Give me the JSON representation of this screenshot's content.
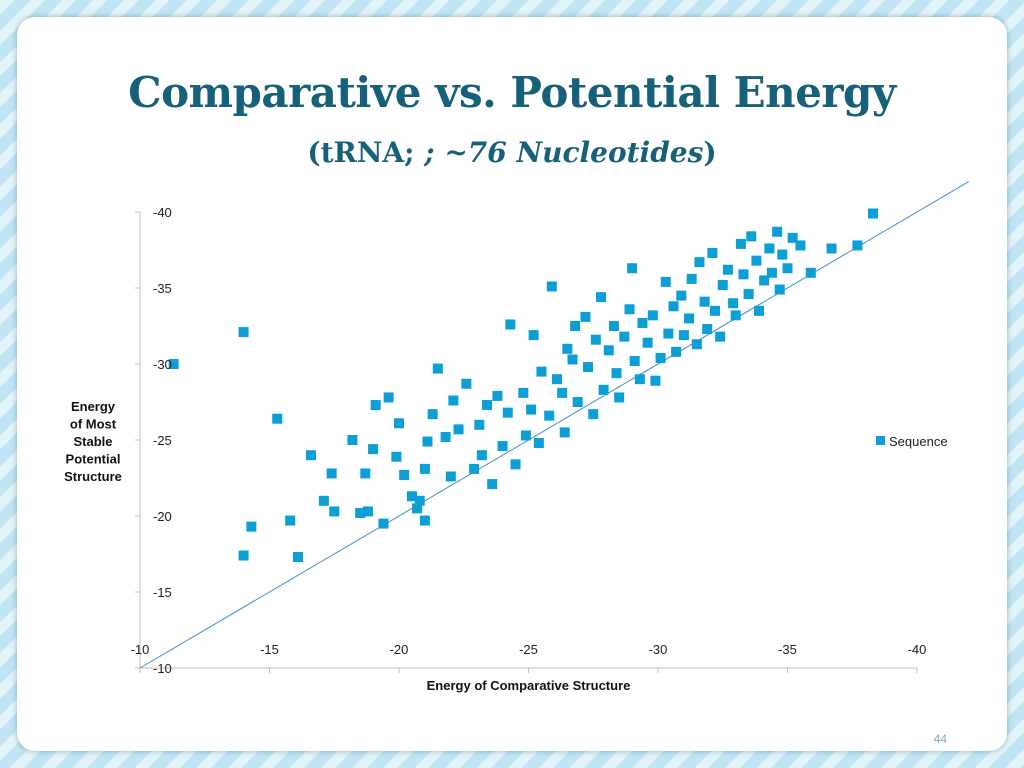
{
  "slide": {
    "title": "Comparative vs. Potential Energy",
    "subtitle_prefix": "(tRNA; ",
    "subtitle_italic": "; ~76 Nucleotides",
    "subtitle_suffix": ")",
    "page_number": "44"
  },
  "chart_data": {
    "type": "scatter",
    "title": "",
    "xlabel": "Energy of Comparative Structure",
    "ylabel_lines": [
      "Energy",
      "of Most",
      "Stable",
      "Potential",
      "Structure"
    ],
    "xlim": [
      -10,
      -40
    ],
    "ylim": [
      -10,
      -40
    ],
    "x_ticks": [
      -10,
      -15,
      -20,
      -25,
      -30,
      -35,
      -40
    ],
    "y_ticks": [
      -10,
      -15,
      -20,
      -25,
      -30,
      -35,
      -40
    ],
    "grid": false,
    "legend": {
      "position": "right",
      "entries": [
        "Sequence"
      ]
    },
    "reference_line": {
      "from": [
        -10,
        -10
      ],
      "to": [
        -42,
        -42
      ]
    },
    "series": [
      {
        "name": "Sequence",
        "color": "#0b9fd6",
        "points": [
          [
            -11.3,
            -30.0
          ],
          [
            -14.0,
            -32.1
          ],
          [
            -14.0,
            -17.4
          ],
          [
            -14.3,
            -19.3
          ],
          [
            -15.3,
            -26.4
          ],
          [
            -15.8,
            -19.7
          ],
          [
            -16.1,
            -17.3
          ],
          [
            -16.6,
            -24.0
          ],
          [
            -17.1,
            -21.0
          ],
          [
            -17.4,
            -22.8
          ],
          [
            -17.5,
            -20.3
          ],
          [
            -18.2,
            -25.0
          ],
          [
            -18.5,
            -20.2
          ],
          [
            -18.8,
            -20.3
          ],
          [
            -18.7,
            -22.8
          ],
          [
            -19.0,
            -24.4
          ],
          [
            -19.1,
            -27.3
          ],
          [
            -19.4,
            -19.5
          ],
          [
            -19.6,
            -27.8
          ],
          [
            -19.9,
            -23.9
          ],
          [
            -20.0,
            -26.1
          ],
          [
            -20.2,
            -22.7
          ],
          [
            -20.5,
            -21.3
          ],
          [
            -20.7,
            -20.5
          ],
          [
            -20.8,
            -21.0
          ],
          [
            -21.0,
            -19.7
          ],
          [
            -21.0,
            -23.1
          ],
          [
            -21.1,
            -24.9
          ],
          [
            -21.3,
            -26.7
          ],
          [
            -21.5,
            -29.7
          ],
          [
            -21.8,
            -25.2
          ],
          [
            -22.0,
            -22.6
          ],
          [
            -22.1,
            -27.6
          ],
          [
            -22.3,
            -25.7
          ],
          [
            -22.6,
            -28.7
          ],
          [
            -22.9,
            -23.1
          ],
          [
            -23.1,
            -26.0
          ],
          [
            -23.2,
            -24.0
          ],
          [
            -23.4,
            -27.3
          ],
          [
            -23.6,
            -22.1
          ],
          [
            -23.8,
            -27.9
          ],
          [
            -24.0,
            -24.6
          ],
          [
            -24.2,
            -26.8
          ],
          [
            -24.3,
            -32.6
          ],
          [
            -24.5,
            -23.4
          ],
          [
            -24.8,
            -28.1
          ],
          [
            -24.9,
            -25.3
          ],
          [
            -25.1,
            -27.0
          ],
          [
            -25.2,
            -31.9
          ],
          [
            -25.4,
            -24.8
          ],
          [
            -25.5,
            -29.5
          ],
          [
            -25.8,
            -26.6
          ],
          [
            -25.9,
            -35.1
          ],
          [
            -26.1,
            -29.0
          ],
          [
            -26.3,
            -28.1
          ],
          [
            -26.4,
            -25.5
          ],
          [
            -26.5,
            -31.0
          ],
          [
            -26.7,
            -30.3
          ],
          [
            -26.8,
            -32.5
          ],
          [
            -26.9,
            -27.5
          ],
          [
            -27.2,
            -33.1
          ],
          [
            -27.3,
            -29.8
          ],
          [
            -27.5,
            -26.7
          ],
          [
            -27.6,
            -31.6
          ],
          [
            -27.8,
            -34.4
          ],
          [
            -27.9,
            -28.3
          ],
          [
            -28.1,
            -30.9
          ],
          [
            -28.3,
            -32.5
          ],
          [
            -28.4,
            -29.4
          ],
          [
            -28.5,
            -27.8
          ],
          [
            -28.7,
            -31.8
          ],
          [
            -28.9,
            -33.6
          ],
          [
            -29.0,
            -36.3
          ],
          [
            -29.1,
            -30.2
          ],
          [
            -29.3,
            -29.0
          ],
          [
            -29.4,
            -32.7
          ],
          [
            -29.6,
            -31.4
          ],
          [
            -29.8,
            -33.2
          ],
          [
            -29.9,
            -28.9
          ],
          [
            -30.1,
            -30.4
          ],
          [
            -30.3,
            -35.4
          ],
          [
            -30.4,
            -32.0
          ],
          [
            -30.6,
            -33.8
          ],
          [
            -30.7,
            -30.8
          ],
          [
            -30.9,
            -34.5
          ],
          [
            -31.0,
            -31.9
          ],
          [
            -31.2,
            -33.0
          ],
          [
            -31.3,
            -35.6
          ],
          [
            -31.5,
            -31.3
          ],
          [
            -31.6,
            -36.7
          ],
          [
            -31.8,
            -34.1
          ],
          [
            -31.9,
            -32.3
          ],
          [
            -32.1,
            -37.3
          ],
          [
            -32.2,
            -33.5
          ],
          [
            -32.4,
            -31.8
          ],
          [
            -32.5,
            -35.2
          ],
          [
            -32.7,
            -36.2
          ],
          [
            -32.9,
            -34.0
          ],
          [
            -33.0,
            -33.2
          ],
          [
            -33.2,
            -37.9
          ],
          [
            -33.3,
            -35.9
          ],
          [
            -33.5,
            -34.6
          ],
          [
            -33.6,
            -38.4
          ],
          [
            -33.8,
            -36.8
          ],
          [
            -33.9,
            -33.5
          ],
          [
            -34.1,
            -35.5
          ],
          [
            -34.3,
            -37.6
          ],
          [
            -34.4,
            -36.0
          ],
          [
            -34.6,
            -38.7
          ],
          [
            -34.7,
            -34.9
          ],
          [
            -34.8,
            -37.2
          ],
          [
            -35.0,
            -36.3
          ],
          [
            -35.2,
            -38.3
          ],
          [
            -35.5,
            -37.8
          ],
          [
            -35.9,
            -36.0
          ],
          [
            -36.7,
            -37.6
          ],
          [
            -37.7,
            -37.8
          ],
          [
            -38.3,
            -39.9
          ]
        ]
      }
    ]
  }
}
